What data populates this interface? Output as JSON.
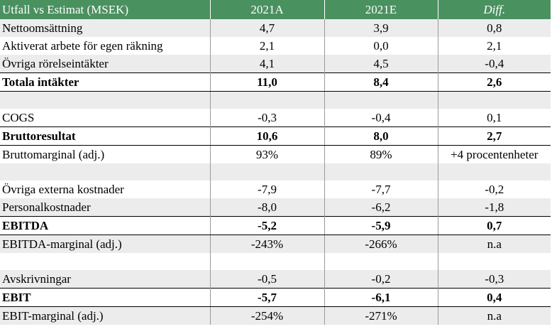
{
  "header": {
    "label": "Utfall vs Estimat (MSEK)",
    "col_a": "2021A",
    "col_e": "2021E",
    "col_diff": "Diff."
  },
  "rows": [
    {
      "label": "Nettoomsättning",
      "a": "4,7",
      "e": "3,9",
      "d": "0,8"
    },
    {
      "label": "Aktiverat arbete för egen räkning",
      "a": "2,1",
      "e": "0,0",
      "d": "2,1"
    },
    {
      "label": "Övriga rörelseintäkter",
      "a": "4,1",
      "e": "4,5",
      "d": "-0,4"
    },
    {
      "label": "Totala intäkter",
      "a": "11,0",
      "e": "8,4",
      "d": "2,6"
    },
    {
      "label": "",
      "a": "",
      "e": "",
      "d": ""
    },
    {
      "label": "COGS",
      "a": "-0,3",
      "e": "-0,4",
      "d": "0,1"
    },
    {
      "label": "Bruttoresultat",
      "a": "10,6",
      "e": "8,0",
      "d": "2,7"
    },
    {
      "label": "Bruttomarginal (adj.)",
      "a": "93%",
      "e": "89%",
      "d": "+4 procentenheter"
    },
    {
      "label": "",
      "a": "",
      "e": "",
      "d": ""
    },
    {
      "label": "Övriga externa kostnader",
      "a": "-7,9",
      "e": "-7,7",
      "d": "-0,2"
    },
    {
      "label": "Personalkostnader",
      "a": "-8,0",
      "e": "-6,2",
      "d": "-1,8"
    },
    {
      "label": "EBITDA",
      "a": "-5,2",
      "e": "-5,9",
      "d": "0,7"
    },
    {
      "label": "EBITDA-marginal (adj.)",
      "a": "-243%",
      "e": "-266%",
      "d": "n.a"
    },
    {
      "label": "",
      "a": "",
      "e": "",
      "d": ""
    },
    {
      "label": "Avskrivningar",
      "a": "-0,5",
      "e": "-0,2",
      "d": "-0,3"
    },
    {
      "label": "EBIT",
      "a": "-5,7",
      "e": "-6,1",
      "d": "0,4"
    },
    {
      "label": "EBIT-marginal (adj.)",
      "a": "-254%",
      "e": "-271%",
      "d": "n.a"
    }
  ]
}
